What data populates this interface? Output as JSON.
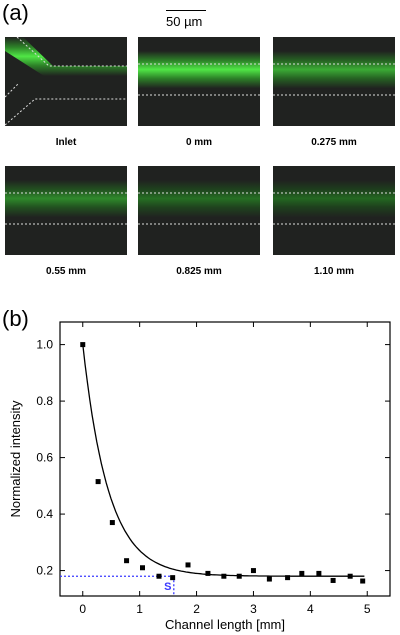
{
  "panel_a": {
    "label": "(a)",
    "scale_label": "50 µm",
    "tiles": [
      {
        "caption": "Inlet",
        "intensity": 1.0,
        "kind": "inlet"
      },
      {
        "caption": "0 mm",
        "intensity": 1.0,
        "kind": "channel"
      },
      {
        "caption": "0.275 mm",
        "intensity": 0.65,
        "kind": "channel"
      },
      {
        "caption": "0.55 mm",
        "intensity": 0.45,
        "kind": "channel"
      },
      {
        "caption": "0.825 mm",
        "intensity": 0.3,
        "kind": "channel"
      },
      {
        "caption": "1.10 mm",
        "intensity": 0.25,
        "kind": "channel"
      }
    ]
  },
  "panel_b": {
    "label": "(b)"
  },
  "chart_data": {
    "type": "scatter",
    "xlabel": "Channel length [mm]",
    "ylabel": "Normalized intensity",
    "xlim": [
      -0.4,
      5.4
    ],
    "ylim": [
      0.11,
      1.08
    ],
    "xticks": [
      "0",
      "1",
      "2",
      "3",
      "4",
      "5"
    ],
    "yticks": [
      "0.2",
      "0.4",
      "0.6",
      "0.8",
      "1.0"
    ],
    "points": [
      [
        0.0,
        1.0
      ],
      [
        0.27,
        0.515
      ],
      [
        0.52,
        0.37
      ],
      [
        0.77,
        0.235
      ],
      [
        1.05,
        0.21
      ],
      [
        1.34,
        0.18
      ],
      [
        1.58,
        0.175
      ],
      [
        1.85,
        0.22
      ],
      [
        2.2,
        0.19
      ],
      [
        2.48,
        0.18
      ],
      [
        2.75,
        0.18
      ],
      [
        3.0,
        0.2
      ],
      [
        3.28,
        0.17
      ],
      [
        3.6,
        0.175
      ],
      [
        3.85,
        0.19
      ],
      [
        4.15,
        0.19
      ],
      [
        4.4,
        0.165
      ],
      [
        4.7,
        0.18
      ],
      [
        4.92,
        0.163
      ]
    ],
    "fit": {
      "y0": 0.18,
      "A": 0.82,
      "k": 2.2
    },
    "marker": {
      "label": "S",
      "x": 1.6,
      "y": 0.18
    },
    "colors": {
      "points": "#000000",
      "fit": "#000000",
      "guide": "#3a3aff"
    }
  }
}
